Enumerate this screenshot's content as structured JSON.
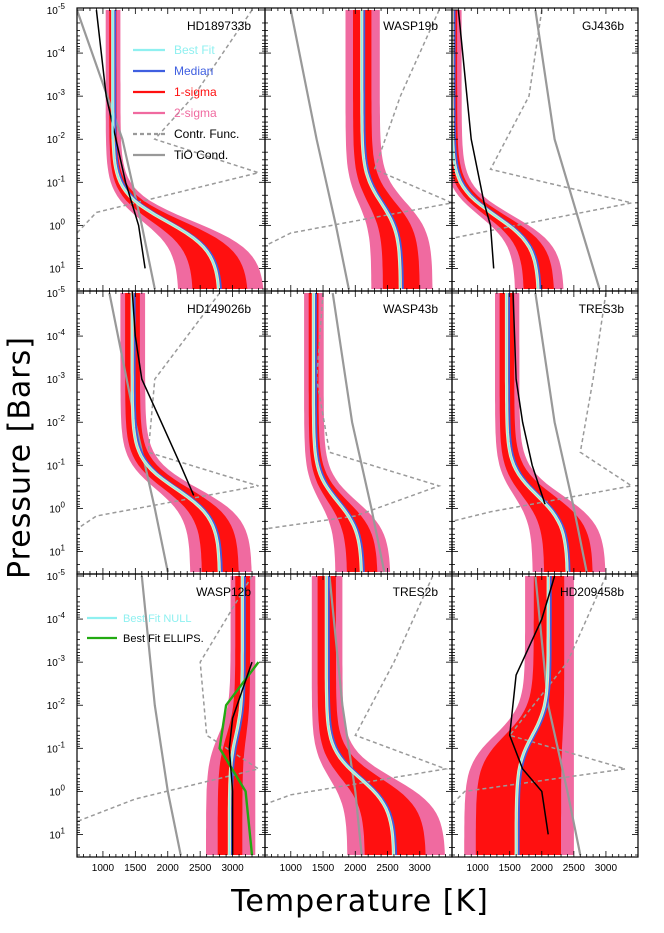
{
  "figure": {
    "ylabel": "Pressure [Bars]",
    "xlabel": "Temperature [K]"
  },
  "colors": {
    "sigma2": "#f06aa0",
    "sigma1": "#ff1010",
    "median": "#3f5fe0",
    "bestfit": "#8ff0f0",
    "contr": "#9a9a9a",
    "cond": "#999999",
    "data": "#000000",
    "ellips": "#22aa11"
  },
  "chart_data": {
    "type": "line",
    "layout": "3x3 grid",
    "xlim": [
      600,
      3500
    ],
    "ylim_bars": [
      1e-05,
      30
    ],
    "y_axis": "log, inverted",
    "x_tick_labels": [
      "1000",
      "1500",
      "2000",
      "2500",
      "3000"
    ],
    "y_tick_labels": [
      "10^-5",
      "10^-4",
      "10^-3",
      "10^-2",
      "10^-1",
      "10^0",
      "10^1"
    ],
    "legend_main": [
      "Best Fit",
      "Median",
      "1-sigma",
      "2-sigma",
      "Contr. Func.",
      "TiO Cond."
    ],
    "legend_wasp12": [
      "Best Fit NULL",
      "Best Fit ELLIPS."
    ],
    "panels": [
      {
        "name": "HD189733b",
        "med_top": 1150,
        "med_bot": 2800,
        "knee": 0.8,
        "w1": [
          60,
          450
        ],
        "w2": [
          120,
          700
        ],
        "data": [
          [
            900,
            1e-05
          ],
          [
            1050,
            0.001
          ],
          [
            1200,
            0.01
          ],
          [
            1350,
            0.1
          ],
          [
            1550,
            1
          ],
          [
            1650,
            10
          ]
        ],
        "bestfit_segment": [
          1150,
          1e-05,
          1150,
          0.01
        ],
        "contr": [
          [
            3300,
            1e-05
          ],
          [
            2400,
            0.001
          ],
          [
            1800,
            0.01
          ],
          [
            3400,
            0.06
          ],
          [
            900,
            0.5
          ],
          [
            600,
            1.5
          ]
        ],
        "cond": [
          [
            600,
            1e-05
          ],
          [
            1300,
            0.01
          ],
          [
            1600,
            1
          ],
          [
            1800,
            30
          ]
        ]
      },
      {
        "name": "WASP19b",
        "med_top": 2100,
        "med_bot": 2700,
        "knee": 0.3,
        "w1": [
          150,
          300
        ],
        "w2": [
          280,
          500
        ],
        "contr": [
          [
            3300,
            1e-05
          ],
          [
            2700,
            0.001
          ],
          [
            2300,
            0.05
          ],
          [
            3500,
            0.3
          ],
          [
            1000,
            1.5
          ],
          [
            600,
            3
          ]
        ],
        "cond": [
          [
            1000,
            1e-05
          ],
          [
            1400,
            0.01
          ],
          [
            1700,
            1
          ],
          [
            1900,
            30
          ]
        ]
      },
      {
        "name": "GJ436b",
        "med_top": 600,
        "med_bot": 1950,
        "knee": 0.6,
        "w1": [
          80,
          250
        ],
        "w2": [
          150,
          400
        ],
        "data": [
          [
            700,
            1e-05
          ],
          [
            900,
            0.01
          ],
          [
            1100,
            0.3
          ],
          [
            1200,
            1
          ],
          [
            1250,
            10
          ]
        ],
        "contr": [
          [
            2000,
            1e-05
          ],
          [
            1800,
            0.001
          ],
          [
            1200,
            0.05
          ],
          [
            3400,
            0.3
          ],
          [
            1600,
            1
          ],
          [
            600,
            2
          ]
        ],
        "cond": [
          [
            1900,
            1e-05
          ],
          [
            2200,
            0.01
          ],
          [
            2600,
            1
          ],
          [
            2900,
            30
          ]
        ]
      },
      {
        "name": "HD149026b",
        "med_top": 1450,
        "med_bot": 2800,
        "knee": 0.35,
        "w1": [
          120,
          300
        ],
        "w2": [
          200,
          500
        ],
        "data": [
          [
            1450,
            8e-06
          ],
          [
            1500,
            0.0001
          ],
          [
            1600,
            0.001
          ],
          [
            1900,
            0.01
          ],
          [
            2200,
            0.1
          ],
          [
            2400,
            0.5
          ]
        ],
        "contr": [
          [
            2800,
            1e-05
          ],
          [
            1800,
            0.001
          ],
          [
            1700,
            0.05
          ],
          [
            3400,
            0.3
          ],
          [
            900,
            1.5
          ],
          [
            600,
            3
          ]
        ],
        "cond": [
          [
            1100,
            1e-05
          ],
          [
            1500,
            0.01
          ],
          [
            1800,
            1
          ],
          [
            2000,
            30
          ]
        ]
      },
      {
        "name": "WASP43b",
        "med_top": 1350,
        "med_bot": 2100,
        "knee": 0.7,
        "w1": [
          80,
          250
        ],
        "w2": [
          160,
          450
        ],
        "contr": [
          [
            1500,
            1e-05
          ],
          [
            1400,
            0.001
          ],
          [
            1600,
            0.05
          ],
          [
            3300,
            0.3
          ],
          [
            2000,
            1.5
          ],
          [
            600,
            3
          ]
        ],
        "cond": [
          [
            1650,
            1e-05
          ],
          [
            1950,
            0.01
          ],
          [
            2250,
            1
          ],
          [
            2450,
            30
          ]
        ]
      },
      {
        "name": "TRES3b",
        "med_top": 1450,
        "med_bot": 2400,
        "knee": 0.5,
        "w1": [
          120,
          400
        ],
        "w2": [
          200,
          600
        ],
        "data": [
          [
            1550,
            8e-06
          ],
          [
            1600,
            0.001
          ],
          [
            1700,
            0.01
          ],
          [
            1850,
            0.1
          ],
          [
            2050,
            0.8
          ]
        ],
        "contr": [
          [
            3000,
            1e-05
          ],
          [
            2800,
            0.001
          ],
          [
            2600,
            0.05
          ],
          [
            3400,
            0.3
          ],
          [
            1200,
            1.2
          ],
          [
            600,
            2
          ]
        ],
        "cond": [
          [
            1900,
            1e-05
          ],
          [
            2200,
            0.01
          ],
          [
            2500,
            1
          ],
          [
            2700,
            30
          ]
        ]
      },
      {
        "name": "WASP12b",
        "med_top": 3150,
        "med_bot": 2950,
        "knee": 0.05,
        "w1": [
          120,
          200
        ],
        "w2": [
          200,
          400
        ],
        "ellips": [
          [
            3400,
            0.001
          ],
          [
            2900,
            0.01
          ],
          [
            2800,
            0.1
          ],
          [
            3200,
            1
          ],
          [
            3300,
            30
          ]
        ],
        "data": [
          [
            3300,
            0.001
          ],
          [
            3000,
            0.02
          ],
          [
            2950,
            0.1
          ],
          [
            3000,
            1
          ],
          [
            3000,
            30
          ]
        ],
        "contr": [
          [
            3300,
            1e-05
          ],
          [
            2500,
            0.001
          ],
          [
            2600,
            0.05
          ],
          [
            3400,
            0.3
          ],
          [
            1500,
            1.5
          ],
          [
            600,
            5
          ]
        ],
        "cond": [
          [
            1600,
            1e-05
          ],
          [
            1800,
            0.01
          ],
          [
            2000,
            1
          ],
          [
            2200,
            30
          ]
        ]
      },
      {
        "name": "TRES2b",
        "med_top": 1550,
        "med_bot": 2600,
        "knee": 0.5,
        "w1": [
          150,
          500
        ],
        "w2": [
          250,
          800
        ],
        "contr": [
          [
            3200,
            1e-05
          ],
          [
            2600,
            0.001
          ],
          [
            2000,
            0.05
          ],
          [
            3400,
            0.3
          ],
          [
            1000,
            1.2
          ],
          [
            600,
            2
          ]
        ],
        "cond": [
          [
            1600,
            1e-05
          ],
          [
            1800,
            0.01
          ],
          [
            2000,
            1
          ],
          [
            2100,
            30
          ]
        ]
      },
      {
        "name": "HD209458b",
        "med_top": 2100,
        "med_bot": 1600,
        "knee": 0.05,
        "w1": [
          250,
          700
        ],
        "w2": [
          400,
          900
        ],
        "data": [
          [
            2200,
            1e-05
          ],
          [
            2000,
            0.0001
          ],
          [
            1600,
            0.002
          ],
          [
            1500,
            0.05
          ],
          [
            1700,
            0.3
          ],
          [
            2000,
            1
          ],
          [
            2100,
            10
          ]
        ],
        "contr": [
          [
            3000,
            1e-05
          ],
          [
            2400,
            0.001
          ],
          [
            1500,
            0.05
          ],
          [
            3300,
            0.3
          ],
          [
            800,
            1
          ],
          [
            600,
            2
          ]
        ],
        "cond": [
          [
            1900,
            1e-05
          ],
          [
            2100,
            0.01
          ],
          [
            2400,
            1
          ],
          [
            2600,
            30
          ]
        ]
      }
    ]
  }
}
